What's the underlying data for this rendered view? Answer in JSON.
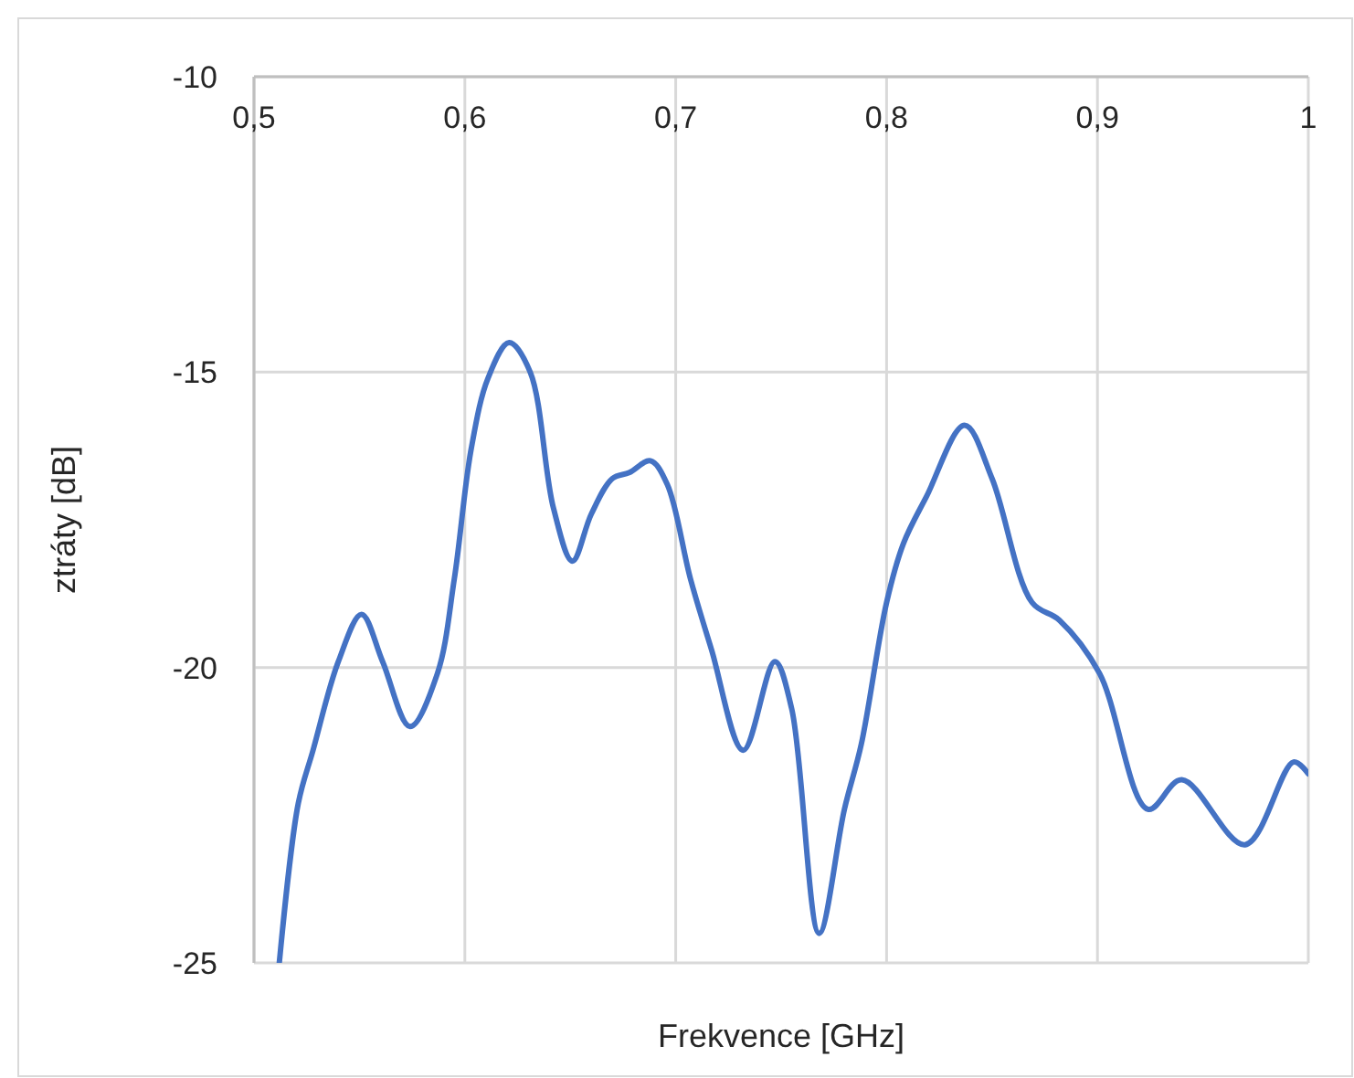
{
  "chart_data": {
    "type": "line",
    "xlabel": "Frekvence [GHz]",
    "ylabel": "ztráty [dB]",
    "x": [
      0.512,
      0.521,
      0.528,
      0.54,
      0.551,
      0.561,
      0.574,
      0.587,
      0.595,
      0.603,
      0.611,
      0.621,
      0.631,
      0.642,
      0.651,
      0.66,
      0.67,
      0.678,
      0.688,
      0.696,
      0.707,
      0.717,
      0.732,
      0.747,
      0.755,
      0.768,
      0.78,
      0.788,
      0.8,
      0.808,
      0.819,
      0.837,
      0.85,
      0.869,
      0.882,
      0.901,
      0.924,
      0.94,
      0.97,
      0.993,
      1.0
    ],
    "series": [
      {
        "color": "#4472c4",
        "values": [
          -25,
          -22.3,
          -21.4,
          -19.9,
          -19.1,
          -19.9,
          -21,
          -20.1,
          -18.5,
          -16.3,
          -15.1,
          -14.5,
          -15,
          -17.3,
          -18.2,
          -17.4,
          -16.8,
          -16.7,
          -16.5,
          -16.9,
          -18.5,
          -19.7,
          -21.4,
          -19.9,
          -20.7,
          -24.5,
          -22.4,
          -21.3,
          -18.9,
          -17.9,
          -17.1,
          -15.9,
          -16.8,
          -18.9,
          -19.2,
          -20.1,
          -22.4,
          -21.9,
          -23,
          -21.6,
          -21.8
        ]
      }
    ],
    "xlim": [
      0.5,
      1
    ],
    "ylim": [
      -25,
      -10
    ],
    "xticks": [
      {
        "value": 0.5,
        "label": "0,5"
      },
      {
        "value": 0.6,
        "label": "0,6"
      },
      {
        "value": 0.7,
        "label": "0,7"
      },
      {
        "value": 0.8,
        "label": "0,8"
      },
      {
        "value": 0.9,
        "label": "0,9"
      },
      1
    ],
    "yticks": [
      -25,
      -20,
      -15,
      -10
    ],
    "grid": true,
    "marker": "none",
    "line_style": "solid"
  }
}
